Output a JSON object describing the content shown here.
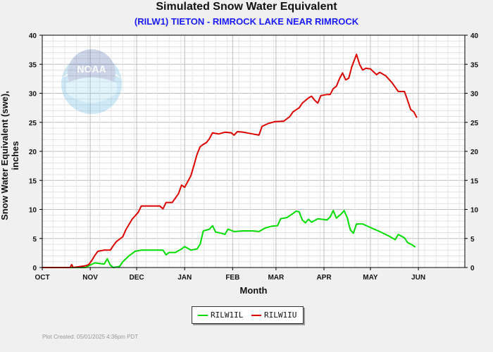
{
  "chart_data": {
    "type": "line",
    "title": "Simulated Snow Water Equivalent",
    "subtitle": "(RILW1) TIETON - RIMROCK LAKE NEAR RIMROCK",
    "xlabel": "Month",
    "ylabel": "Snow Water Equivalent (swe),  inches",
    "x_tick_labels": [
      "OCT",
      "NOV",
      "DEC",
      "JAN",
      "FEB",
      "MAR",
      "APR",
      "MAY",
      "JUN"
    ],
    "y_ticks": [
      0,
      5,
      10,
      15,
      20,
      25,
      30,
      35,
      40
    ],
    "x_unit": "days since Oct 1",
    "xlim": [
      0,
      273
    ],
    "ylim": [
      0,
      40
    ],
    "grid": true,
    "legend_position": "bottom-center",
    "series": [
      {
        "name": "RILW1IL",
        "color": "#00dd00",
        "points": [
          [
            0,
            0
          ],
          [
            28,
            0
          ],
          [
            30,
            0.3
          ],
          [
            34,
            0.8
          ],
          [
            40,
            0.6
          ],
          [
            42,
            1.5
          ],
          [
            44,
            0.4
          ],
          [
            46,
            0
          ],
          [
            50,
            0.2
          ],
          [
            52,
            1.0
          ],
          [
            56,
            2.0
          ],
          [
            60,
            2.8
          ],
          [
            64,
            3.0
          ],
          [
            70,
            3.0
          ],
          [
            78,
            3.0
          ],
          [
            80,
            2.2
          ],
          [
            82,
            2.6
          ],
          [
            86,
            2.6
          ],
          [
            90,
            3.2
          ],
          [
            92,
            3.6
          ],
          [
            96,
            3.0
          ],
          [
            100,
            3.2
          ],
          [
            102,
            4.0
          ],
          [
            104,
            6.3
          ],
          [
            108,
            6.6
          ],
          [
            110,
            7.2
          ],
          [
            112,
            6.1
          ],
          [
            116,
            5.9
          ],
          [
            118,
            5.7
          ],
          [
            120,
            6.6
          ],
          [
            124,
            6.2
          ],
          [
            130,
            6.3
          ],
          [
            136,
            6.3
          ],
          [
            140,
            6.2
          ],
          [
            144,
            6.8
          ],
          [
            148,
            7.1
          ],
          [
            152,
            7.2
          ],
          [
            154,
            8.4
          ],
          [
            158,
            8.6
          ],
          [
            162,
            9.3
          ],
          [
            164,
            9.7
          ],
          [
            166,
            9.6
          ],
          [
            168,
            8.2
          ],
          [
            170,
            7.7
          ],
          [
            172,
            8.3
          ],
          [
            174,
            7.8
          ],
          [
            178,
            8.4
          ],
          [
            184,
            8.2
          ],
          [
            186,
            8.7
          ],
          [
            188,
            9.8
          ],
          [
            190,
            8.5
          ],
          [
            193,
            9.2
          ],
          [
            195,
            9.8
          ],
          [
            197,
            8.6
          ],
          [
            199,
            6.5
          ],
          [
            201,
            5.9
          ],
          [
            203,
            7.5
          ],
          [
            207,
            7.5
          ],
          [
            212,
            6.9
          ],
          [
            218,
            6.2
          ],
          [
            224,
            5.4
          ],
          [
            228,
            4.8
          ],
          [
            230,
            5.7
          ],
          [
            234,
            5.1
          ],
          [
            236,
            4.3
          ],
          [
            239,
            3.9
          ],
          [
            241,
            3.5
          ]
        ]
      },
      {
        "name": "RILW1IU",
        "color": "#dd0000",
        "points": [
          [
            0,
            0
          ],
          [
            18,
            0
          ],
          [
            19,
            0.5
          ],
          [
            20,
            0
          ],
          [
            28,
            0.3
          ],
          [
            30,
            0.5
          ],
          [
            32,
            1.2
          ],
          [
            34,
            2.1
          ],
          [
            36,
            2.8
          ],
          [
            40,
            3.0
          ],
          [
            44,
            3.0
          ],
          [
            46,
            3.8
          ],
          [
            48,
            4.5
          ],
          [
            52,
            5.3
          ],
          [
            54,
            6.5
          ],
          [
            58,
            8.3
          ],
          [
            62,
            9.5
          ],
          [
            64,
            10.6
          ],
          [
            70,
            10.6
          ],
          [
            76,
            10.6
          ],
          [
            78,
            10.1
          ],
          [
            80,
            11.2
          ],
          [
            84,
            11.2
          ],
          [
            88,
            12.7
          ],
          [
            90,
            14.2
          ],
          [
            92,
            13.8
          ],
          [
            96,
            15.8
          ],
          [
            98,
            17.6
          ],
          [
            100,
            19.5
          ],
          [
            102,
            20.8
          ],
          [
            104,
            21.2
          ],
          [
            106,
            21.5
          ],
          [
            108,
            22.2
          ],
          [
            110,
            23.2
          ],
          [
            114,
            23.0
          ],
          [
            118,
            23.3
          ],
          [
            122,
            23.2
          ],
          [
            124,
            22.8
          ],
          [
            126,
            23.4
          ],
          [
            130,
            23.3
          ],
          [
            136,
            23.0
          ],
          [
            140,
            22.8
          ],
          [
            142,
            24.3
          ],
          [
            146,
            24.8
          ],
          [
            150,
            25.1
          ],
          [
            156,
            25.2
          ],
          [
            160,
            26.0
          ],
          [
            162,
            26.8
          ],
          [
            166,
            27.5
          ],
          [
            168,
            28.3
          ],
          [
            172,
            29.2
          ],
          [
            174,
            29.5
          ],
          [
            176,
            28.8
          ],
          [
            178,
            28.3
          ],
          [
            180,
            29.6
          ],
          [
            184,
            29.8
          ],
          [
            186,
            29.8
          ],
          [
            188,
            30.8
          ],
          [
            190,
            31.2
          ],
          [
            192,
            32.5
          ],
          [
            194,
            33.5
          ],
          [
            196,
            32.3
          ],
          [
            198,
            32.6
          ],
          [
            200,
            34.6
          ],
          [
            203,
            36.7
          ],
          [
            205,
            35.0
          ],
          [
            207,
            34.0
          ],
          [
            209,
            34.3
          ],
          [
            212,
            34.2
          ],
          [
            216,
            33.2
          ],
          [
            218,
            33.6
          ],
          [
            222,
            33.0
          ],
          [
            226,
            31.8
          ],
          [
            230,
            30.3
          ],
          [
            234,
            30.3
          ],
          [
            236,
            28.8
          ],
          [
            238,
            27.2
          ],
          [
            240,
            26.8
          ],
          [
            242,
            25.8
          ]
        ]
      }
    ]
  },
  "footer": "Plot Created: 05/01/2025 4:36pm PDT",
  "logo_text": "NOAA"
}
